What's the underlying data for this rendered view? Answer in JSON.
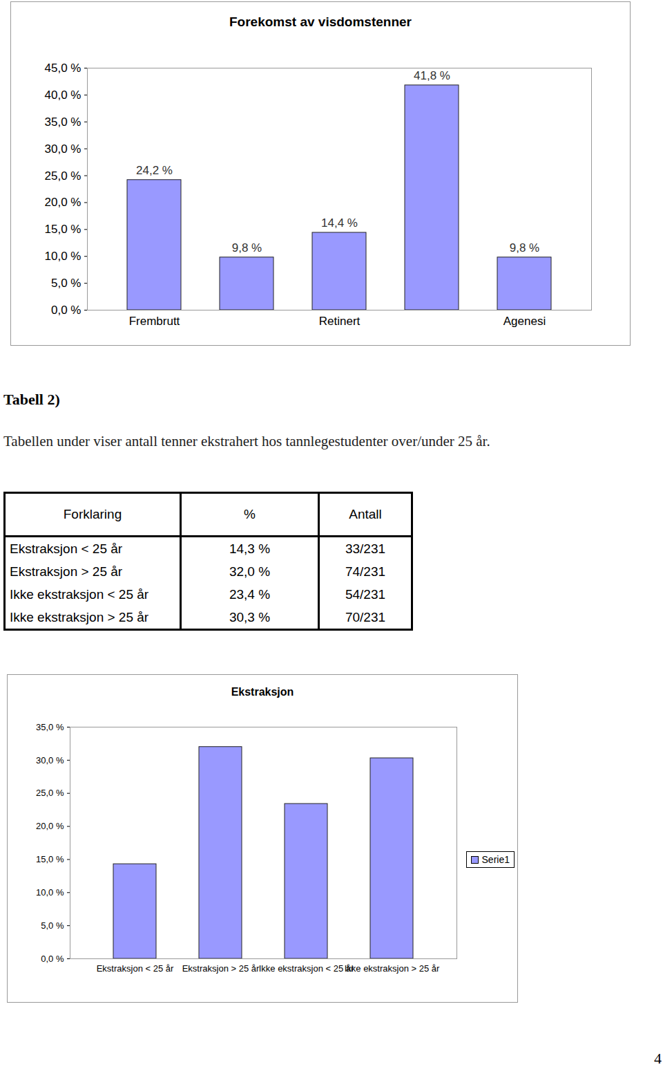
{
  "chart_data": [
    {
      "type": "bar",
      "title": "Forekomst av visdomstenner",
      "categories": [
        "Frembrutt",
        null,
        "Retinert",
        null,
        "Agenesi"
      ],
      "values": [
        24.2,
        9.8,
        14.4,
        41.8,
        9.8
      ],
      "value_labels": [
        "24,2 %",
        "9,8 %",
        "14,4 %",
        "41,8 %",
        "9,8 %"
      ],
      "data_labels": true,
      "color": "#9999ff",
      "ylim": [
        0,
        45
      ],
      "yticks": [
        {
          "value": 0,
          "label": "0,0 %"
        },
        {
          "value": 5,
          "label": "5,0 %"
        },
        {
          "value": 10,
          "label": "10,0 %"
        },
        {
          "value": 15,
          "label": "15,0 %"
        },
        {
          "value": 20,
          "label": "20,0 %"
        },
        {
          "value": 25,
          "label": "25,0 %"
        },
        {
          "value": 30,
          "label": "30,0 %"
        },
        {
          "value": 35,
          "label": "35,0 %"
        },
        {
          "value": 40,
          "label": "40,0 %"
        },
        {
          "value": 45,
          "label": "45,0 %"
        }
      ],
      "grid": false
    },
    {
      "type": "bar",
      "title": "Ekstraksjon",
      "categories": [
        "Ekstraksjon < 25 år",
        "Ekstraksjon > 25 år",
        "Ikke ekstraksjon < 25 år",
        "Ikke ekstraksjon > 25 år"
      ],
      "series": [
        {
          "name": "Serie1",
          "color": "#9999ff",
          "values": [
            14.3,
            32.0,
            23.4,
            30.3
          ]
        }
      ],
      "ylim": [
        0,
        35
      ],
      "yticks": [
        {
          "value": 0,
          "label": "0,0 %"
        },
        {
          "value": 5,
          "label": "5,0 %"
        },
        {
          "value": 10,
          "label": "10,0 %"
        },
        {
          "value": 15,
          "label": "15,0 %"
        },
        {
          "value": 20,
          "label": "20,0 %"
        },
        {
          "value": 25,
          "label": "25,0 %"
        },
        {
          "value": 30,
          "label": "30,0 %"
        },
        {
          "value": 35,
          "label": "35,0 %"
        }
      ],
      "grid": false,
      "legend": "right"
    }
  ],
  "heading": "Tabell 2)",
  "caption": "Tabellen under viser antall tenner ekstrahert hos tannlegestudenter over/under 25 år.",
  "table": {
    "header": [
      "Forklaring",
      "%",
      "Antall"
    ],
    "rows": [
      [
        "Ekstraksjon < 25 år",
        "14,3 %",
        "33/231"
      ],
      [
        "Ekstraksjon > 25 år",
        "32,0 %",
        "74/231"
      ],
      [
        "Ikke ekstraksjon < 25 år",
        "23,4 %",
        "54/231"
      ],
      [
        "Ikke ekstraksjon > 25 år",
        "30,3 %",
        "70/231"
      ]
    ]
  },
  "page_number": "4"
}
